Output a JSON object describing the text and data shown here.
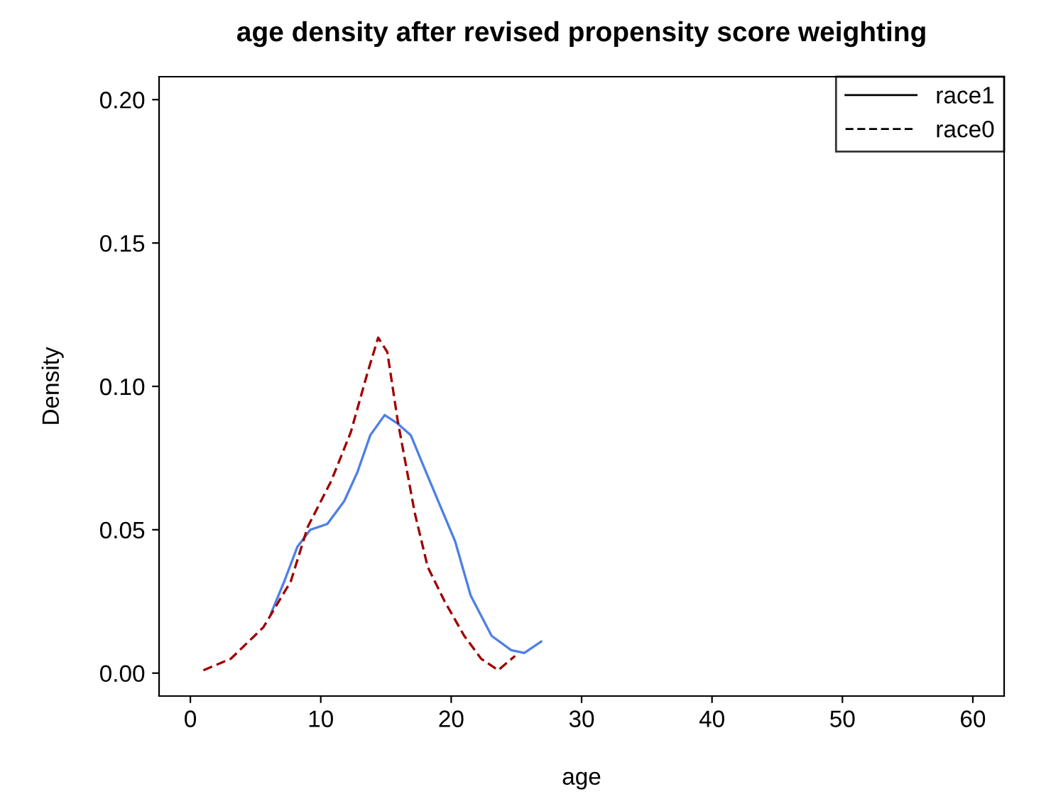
{
  "chart_data": {
    "type": "line",
    "title": "age density after revised propensity score weighting",
    "xlabel": "age",
    "ylabel": "Density",
    "xlim": [
      -2.4,
      62.4
    ],
    "ylim": [
      -0.008,
      0.208
    ],
    "xticks": [
      0,
      10,
      20,
      30,
      40,
      50,
      60
    ],
    "yticks": [
      {
        "value": 0,
        "label": "0.00"
      },
      {
        "value": 0.05,
        "label": "0.05"
      },
      {
        "value": 0.1,
        "label": "0.10"
      },
      {
        "value": 0.15,
        "label": "0.15"
      },
      {
        "value": 0.2,
        "label": "0.20"
      }
    ],
    "grid": false,
    "legend": "top right",
    "series": [
      {
        "name": "race1",
        "color": "#4f7fe6",
        "line_style": "solid",
        "x": [
          6.2,
          7.2,
          8.2,
          9.2,
          10.5,
          11.8,
          12.8,
          13.8,
          14.9,
          15.9,
          16.9,
          17.9,
          19.0,
          20.3,
          21.5,
          23.1,
          24.6,
          25.6,
          26.9
        ],
        "values": [
          0.021,
          0.032,
          0.044,
          0.05,
          0.052,
          0.06,
          0.07,
          0.083,
          0.09,
          0.087,
          0.083,
          0.072,
          0.06,
          0.046,
          0.027,
          0.013,
          0.008,
          0.007,
          0.011
        ]
      },
      {
        "name": "race0",
        "color": "#a00000",
        "line_style": "dashed",
        "x": [
          1.0,
          3.1,
          5.6,
          7.7,
          9.0,
          10.8,
          12.3,
          13.6,
          14.4,
          15.1,
          15.9,
          17.2,
          18.2,
          19.5,
          21.0,
          22.3,
          23.6,
          24.9
        ],
        "values": [
          0.001,
          0.005,
          0.016,
          0.032,
          0.051,
          0.067,
          0.084,
          0.105,
          0.117,
          0.112,
          0.088,
          0.056,
          0.037,
          0.025,
          0.013,
          0.005,
          0.001,
          0.006
        ]
      }
    ]
  }
}
